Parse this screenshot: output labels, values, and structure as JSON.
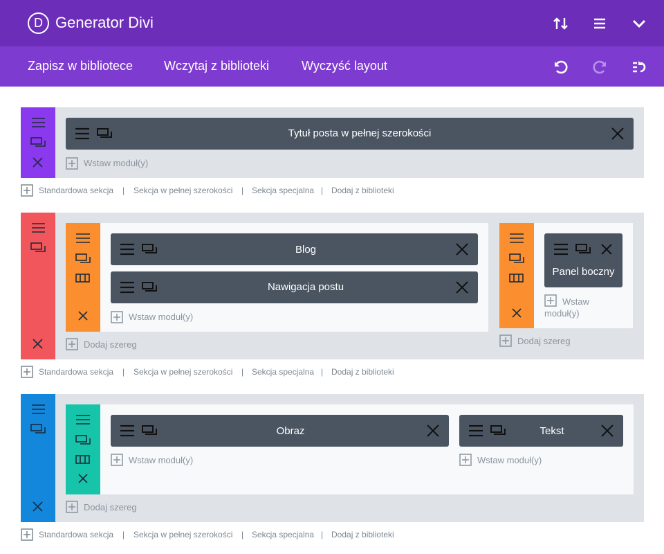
{
  "header": {
    "logo_letter": "D",
    "title": "Generator Divi",
    "icons": [
      "sort-arrows-icon",
      "hamburger-icon",
      "chevron-down-icon"
    ]
  },
  "toolbar": {
    "save_label": "Zapisz w bibliotece",
    "load_label": "Wczytaj z biblioteki",
    "clear_label": "Wyczyść layout",
    "icons": [
      "undo-icon",
      "redo-icon",
      "history-icon"
    ]
  },
  "sections": [
    {
      "color": "#8b39ee",
      "modules": [
        "Tytuł posta w pełnej szerokości"
      ],
      "insert_label": "Wstaw moduł(y)"
    },
    {
      "color": "#f0565c",
      "rows": [
        {
          "modules": [
            "Blog",
            "Nawigacja postu"
          ],
          "insert_label": "Wstaw moduł(y)"
        },
        {
          "modules": [
            "Panel boczny"
          ],
          "insert_label": "Wstaw moduł(y)"
        }
      ],
      "add_row_label": "Dodaj szereg"
    },
    {
      "color": "#1287dc",
      "row": {
        "columns": [
          {
            "module": "Obraz",
            "insert_label": "Wstaw moduł(y)"
          },
          {
            "module": "Tekst",
            "insert_label": "Wstaw moduł(y)"
          }
        ]
      },
      "add_row_label": "Dodaj szereg"
    }
  ],
  "section_links": {
    "standard": "Standardowa sekcja",
    "fullwidth": "Sekcja w pełnej szerokości",
    "special": "Sekcja specjalna",
    "library": "Dodaj z biblioteki",
    "separator": "|"
  },
  "colors": {
    "topbar": "#6c2eb9",
    "subbar": "#7e3bd0",
    "orange": "#fb8f2f",
    "teal": "#15c4a9",
    "module": "#4b5562"
  }
}
